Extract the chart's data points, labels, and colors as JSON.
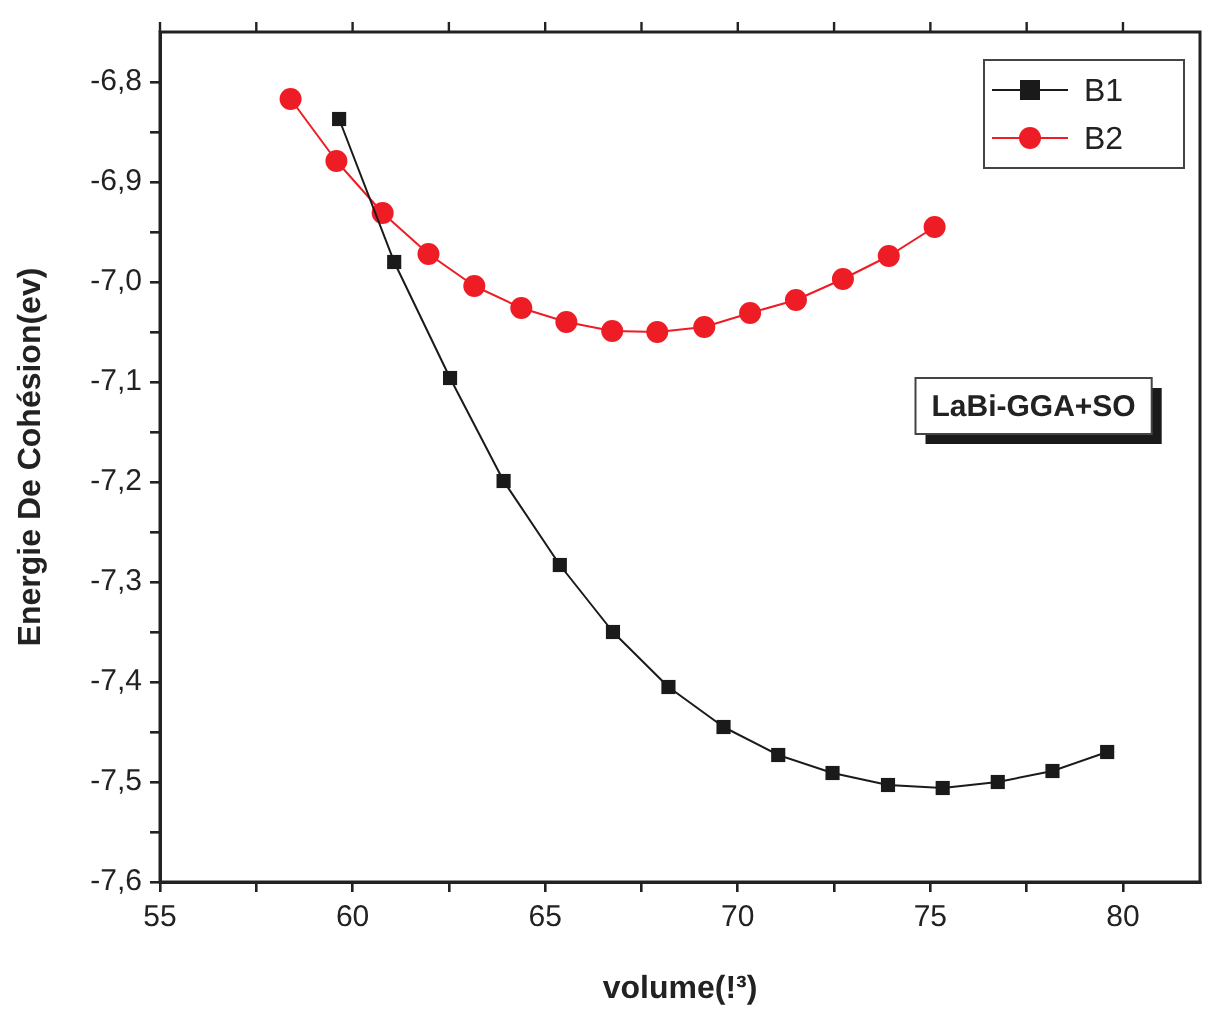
{
  "chart_data": {
    "type": "line",
    "xlabel": "volume(!³)",
    "ylabel": "Energie De Cohésion(ev)",
    "annotations": [
      "LaBi-GGA+SO"
    ],
    "xlim": [
      55,
      82
    ],
    "ylim": [
      -7.6,
      -6.75
    ],
    "xticks": [
      55,
      {
        "value": 57.5,
        "label": null
      },
      60,
      {
        "value": 62.5,
        "label": null
      },
      65,
      {
        "value": 67.5,
        "label": null
      },
      70,
      {
        "value": 72.5,
        "label": null
      },
      75,
      {
        "value": 77.5,
        "label": null
      },
      80
    ],
    "yticks": [
      {
        "value": -7.6,
        "label": "-7,6"
      },
      {
        "value": -7.55,
        "label": null
      },
      {
        "value": -7.5,
        "label": "-7,5"
      },
      {
        "value": -7.45,
        "label": null
      },
      {
        "value": -7.4,
        "label": "-7,4"
      },
      {
        "value": -7.35,
        "label": null
      },
      {
        "value": -7.3,
        "label": "-7,3"
      },
      {
        "value": -7.25,
        "label": null
      },
      {
        "value": -7.2,
        "label": "-7,2"
      },
      {
        "value": -7.15,
        "label": null
      },
      {
        "value": -7.1,
        "label": "-7,1"
      },
      {
        "value": -7.05,
        "label": null
      },
      {
        "value": -7.0,
        "label": "-7,0"
      },
      {
        "value": -6.95,
        "label": null
      },
      {
        "value": -6.9,
        "label": "-6,9"
      },
      {
        "value": -6.85,
        "label": null
      },
      {
        "value": -6.8,
        "label": "-6,8"
      }
    ],
    "grid": false,
    "legend": "top right",
    "line_style": "solid",
    "series": [
      {
        "name": "B1",
        "color": "#1a1a1a",
        "marker": "square",
        "x": [
          59.65,
          61.08,
          62.53,
          63.92,
          65.38,
          66.76,
          68.2,
          69.63,
          71.05,
          72.46,
          73.9,
          75.32,
          76.75,
          78.17,
          79.59
        ],
        "values": [
          -6.837,
          -6.98,
          -7.096,
          -7.199,
          -7.283,
          -7.35,
          -7.405,
          -7.445,
          -7.473,
          -7.491,
          -7.503,
          -7.506,
          -7.5,
          -7.489,
          -7.47
        ]
      },
      {
        "name": "B2",
        "color": "#ee1c25",
        "marker": "circle",
        "x": [
          58.39,
          59.58,
          60.78,
          61.97,
          63.16,
          64.38,
          65.55,
          66.74,
          67.91,
          69.13,
          70.32,
          71.51,
          72.73,
          73.92,
          75.11
        ],
        "values": [
          -6.817,
          -6.879,
          -6.931,
          -6.972,
          -7.004,
          -7.026,
          -7.04,
          -7.049,
          -7.05,
          -7.045,
          -7.031,
          -7.018,
          -6.997,
          -6.974,
          -6.945
        ]
      }
    ]
  }
}
